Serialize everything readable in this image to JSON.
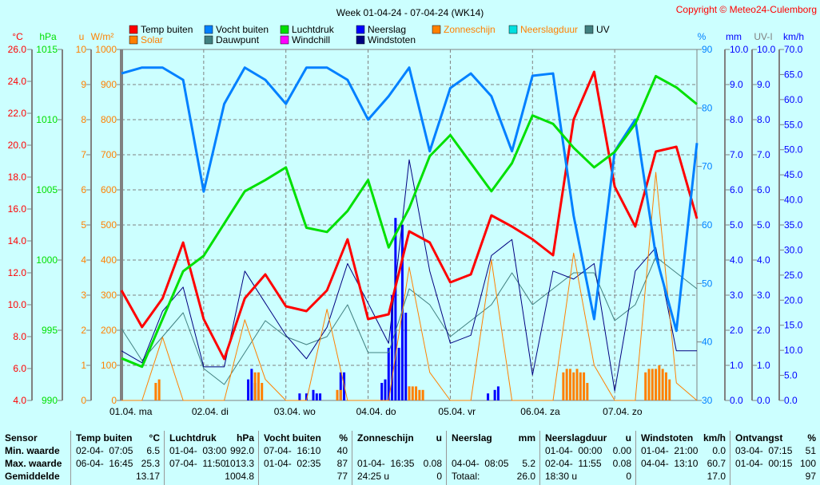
{
  "title": "Week 01-04-24 - 07-04-24 (WK14)",
  "copyright": "Copyright © Meteo24-Culemborg",
  "legend": [
    {
      "label": "Temp buiten",
      "color": "#ff0000"
    },
    {
      "label": "Vocht buiten",
      "color": "#0080ff"
    },
    {
      "label": "Luchtdruk",
      "color": "#00e000"
    },
    {
      "label": "Neerslag",
      "color": "#0000ff"
    },
    {
      "label": "Zonneschijn",
      "color": "#ff8000"
    },
    {
      "label": "Neerslagduur",
      "color": "#00e0e0"
    },
    {
      "label": "UV",
      "color": "#408080"
    },
    {
      "label": "Solar",
      "color": "#ff8000"
    },
    {
      "label": "Dauwpunt",
      "color": "#408080"
    },
    {
      "label": "Windchill",
      "color": "#ff00ff"
    },
    {
      "label": "Windstoten",
      "color": "#000080"
    }
  ],
  "chart_data": {
    "type": "line",
    "title": "Week 01-04-24 - 07-04-24 (WK14)",
    "x_hours": [
      0,
      6,
      12,
      18,
      24,
      30,
      36,
      42,
      48,
      54,
      60,
      66,
      72,
      78,
      84,
      90,
      96,
      102,
      108,
      114,
      120,
      126,
      132,
      138,
      144,
      150,
      156,
      162,
      168
    ],
    "x_tick_labels": [
      "01.04.  ma",
      "02.04.  di",
      "03.04.  wo",
      "04.04.  do",
      "05.04.  vr",
      "06.04.  za",
      "07.04.  zo"
    ],
    "axes": {
      "temp": {
        "unit": "°C",
        "range": [
          4,
          26
        ],
        "ticks": [
          "26.0",
          "24.0",
          "22.0",
          "20.0",
          "18.0",
          "16.0",
          "14.0",
          "12.0",
          "10.0",
          "8.0",
          "6.0",
          "4.0"
        ],
        "color": "#ff0000"
      },
      "pressure": {
        "unit": "hPa",
        "range": [
          990,
          1015
        ],
        "ticks": [
          "1015",
          "1010",
          "1005",
          "1000",
          "995",
          "990"
        ],
        "color": "#00e000"
      },
      "sun": {
        "unit": "u",
        "range": [
          0,
          10
        ],
        "ticks": [
          "10",
          "9",
          "8",
          "7",
          "6",
          "5",
          "4",
          "3",
          "2",
          "1",
          "0"
        ],
        "color": "#ff8000"
      },
      "solar": {
        "unit": "W/m²",
        "range": [
          0,
          1000
        ],
        "ticks": [
          "1000",
          "900",
          "800",
          "700",
          "600",
          "500",
          "400",
          "300",
          "200",
          "100",
          "0"
        ],
        "color": "#ff8000"
      },
      "humidity": {
        "unit": "%",
        "range": [
          30,
          90
        ],
        "ticks": [
          "90",
          "80",
          "70",
          "60",
          "50",
          "40",
          "30"
        ],
        "color": "#0080ff"
      },
      "rain": {
        "unit": "mm",
        "range": [
          0,
          10
        ],
        "ticks": [
          "10.0",
          "9.0",
          "8.0",
          "7.0",
          "6.0",
          "5.0",
          "4.0",
          "3.0",
          "2.0",
          "1.0",
          "0.0"
        ],
        "color": "#0000ff"
      },
      "uv": {
        "unit": "UV-I",
        "range": [
          0,
          10
        ],
        "ticks": [
          "10.0",
          "9.0",
          "8.0",
          "7.0",
          "6.0",
          "5.0",
          "4.0",
          "3.0",
          "2.0",
          "1.0",
          "0.0"
        ],
        "color": "#0000ff"
      },
      "wind": {
        "unit": "km/h",
        "range": [
          0,
          70
        ],
        "ticks": [
          "70.0",
          "65.0",
          "60.0",
          "55.0",
          "50.0",
          "45.0",
          "40.0",
          "35.0",
          "30.0",
          "25.0",
          "20.0",
          "15.0",
          "10.0",
          "5.0",
          "0.0"
        ],
        "color": "#0000ff"
      }
    },
    "series": [
      {
        "name": "Temp buiten",
        "axis": "temp",
        "color": "#ff0000",
        "width": 3,
        "values": [
          10.9,
          8.6,
          10.4,
          13.9,
          9.1,
          6.6,
          10.4,
          11.9,
          9.9,
          9.6,
          10.9,
          14.1,
          9.1,
          9.4,
          14.6,
          13.9,
          11.4,
          11.9,
          15.6,
          14.9,
          14.1,
          13.1,
          21.6,
          24.6,
          17.4,
          14.9,
          19.6,
          19.9,
          15.4
        ]
      },
      {
        "name": "Vocht buiten",
        "axis": "humidity",
        "color": "#0080ff",
        "width": 3,
        "values": [
          85.9,
          86.9,
          86.9,
          84.8,
          65.7,
          80.7,
          86.9,
          84.8,
          80.7,
          86.9,
          86.9,
          84.8,
          78,
          82,
          86.9,
          72.6,
          83.4,
          85.9,
          82,
          72.6,
          85.5,
          85.9,
          61.6,
          43.9,
          72.6,
          78,
          54.8,
          41.9,
          74
        ]
      },
      {
        "name": "Luchtdruk",
        "axis": "pressure",
        "color": "#00e000",
        "width": 3,
        "values": [
          993,
          992.4,
          995.8,
          999.2,
          1000.3,
          1002.6,
          1004.9,
          1005.7,
          1006.6,
          1002.3,
          1002,
          1003.5,
          1005.7,
          1000.9,
          1003.7,
          1007.4,
          1008.9,
          1006.9,
          1004.9,
          1006.9,
          1010.3,
          1009.7,
          1008,
          1006.6,
          1007.7,
          1009.7,
          1013.1,
          1012.3,
          1011.1
        ]
      },
      {
        "name": "Dauwpunt",
        "axis": "temp",
        "color": "#408080",
        "width": 1,
        "values": [
          8.5,
          6.5,
          8,
          9.5,
          6,
          5,
          7,
          9,
          8,
          7.5,
          8,
          10,
          7,
          7,
          11,
          10,
          8,
          9,
          10,
          12,
          10,
          11,
          12,
          12,
          9,
          10,
          13,
          12,
          11
        ]
      },
      {
        "name": "Windstoten",
        "axis": "wind",
        "color": "#000080",
        "width": 1,
        "values": [
          9.9,
          7.5,
          17.8,
          22.6,
          6.7,
          6.7,
          25.8,
          19.4,
          13,
          8.3,
          14.6,
          27.3,
          19.4,
          11.4,
          48,
          25.8,
          11.4,
          13,
          28.9,
          32.1,
          5.1,
          25.8,
          24.2,
          27.3,
          1.9,
          25.8,
          30.5,
          9.9,
          9.9
        ]
      },
      {
        "name": "Solar",
        "axis": "solar",
        "color": "#ff8000",
        "width": 1,
        "values": [
          0,
          0,
          180,
          0,
          0,
          0,
          230,
          60,
          0,
          0,
          260,
          0,
          0,
          0,
          380,
          80,
          0,
          0,
          400,
          0,
          0,
          0,
          420,
          100,
          0,
          0,
          650,
          50,
          0
        ]
      }
    ],
    "bars": {
      "Neerslag": {
        "axis": "rain",
        "color": "#0000ff",
        "hours": [
          37,
          38,
          39,
          40,
          52,
          54,
          56,
          57,
          58,
          64,
          65,
          76,
          77,
          78,
          79,
          80,
          81,
          82,
          83,
          84,
          107,
          109,
          110
        ],
        "values": [
          0.6,
          0.9,
          0.5,
          0.3,
          0.2,
          0.2,
          0.3,
          0.2,
          0.2,
          0.8,
          0.8,
          0.5,
          0.6,
          1.5,
          3,
          5.2,
          1.5,
          5,
          2.5,
          0.4,
          0.2,
          0.3,
          0.4
        ]
      },
      "Zonneschijn": {
        "axis": "sun",
        "color": "#ff8000",
        "hours": [
          10,
          11,
          39,
          40,
          41,
          63,
          64,
          84,
          85,
          86,
          87,
          88,
          129,
          130,
          131,
          132,
          133,
          134,
          135,
          136,
          153,
          154,
          155,
          156,
          157,
          158,
          159,
          160
        ],
        "values": [
          0.5,
          0.6,
          0.8,
          0.8,
          0.5,
          0.3,
          0.3,
          0.4,
          0.4,
          0.4,
          0.3,
          0.3,
          0.8,
          0.9,
          0.9,
          0.8,
          0.9,
          0.8,
          0.8,
          0.5,
          0.8,
          0.9,
          0.9,
          0.9,
          1,
          0.9,
          0.8,
          0.6
        ]
      }
    }
  },
  "table": [
    {
      "head": [
        "Sensor",
        ""
      ],
      "rows": [
        [
          "Min. waarde",
          ""
        ],
        [
          "Max. waarde",
          ""
        ],
        [
          "Gemiddelde",
          ""
        ]
      ],
      "bold": true
    },
    {
      "head": [
        "Temp buiten",
        "°C"
      ],
      "rows": [
        [
          "02-04-  07:05",
          "6.5"
        ],
        [
          "06-04-  16:45",
          "25.3"
        ],
        [
          "",
          "13.17"
        ]
      ]
    },
    {
      "head": [
        "Luchtdruk",
        "hPa"
      ],
      "rows": [
        [
          "01-04-  03:00",
          "992.0"
        ],
        [
          "07-04-  11:50",
          "1013.3"
        ],
        [
          "",
          "1004.8"
        ]
      ]
    },
    {
      "head": [
        "Vocht buiten",
        "%"
      ],
      "rows": [
        [
          "07-04-  16:10",
          "40"
        ],
        [
          "01-04-  02:35",
          "87"
        ],
        [
          "",
          "77"
        ]
      ]
    },
    {
      "head": [
        "Zonneschijn",
        "u"
      ],
      "rows": [
        [
          "",
          ""
        ],
        [
          "01-04-  16:35",
          "0.08"
        ],
        [
          "24:25 u",
          "0"
        ]
      ]
    },
    {
      "head": [
        "Neerslag",
        "mm"
      ],
      "rows": [
        [
          "",
          ""
        ],
        [
          "04-04-  08:05",
          "5.2"
        ],
        [
          "Totaal:",
          "26.0"
        ]
      ]
    },
    {
      "head": [
        "Neerslagduur",
        "u"
      ],
      "rows": [
        [
          "01-04-  00:00",
          "0.00"
        ],
        [
          "02-04-  11:55",
          "0.08"
        ],
        [
          "18:30 u",
          "0"
        ]
      ]
    },
    {
      "head": [
        "Windstoten",
        "km/h"
      ],
      "rows": [
        [
          "01-04-  21:00",
          "0.0"
        ],
        [
          "04-04-  13:10",
          "60.7"
        ],
        [
          "",
          "17.0"
        ]
      ]
    },
    {
      "head": [
        "Ontvangst",
        "%"
      ],
      "rows": [
        [
          "03-04-  07:15",
          "51"
        ],
        [
          "01-04-  00:15",
          "100"
        ],
        [
          "",
          "97"
        ]
      ]
    }
  ]
}
